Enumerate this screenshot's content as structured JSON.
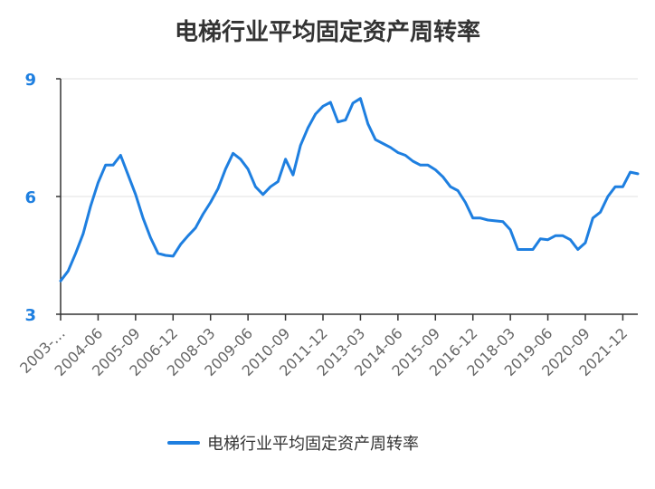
{
  "chart_data": {
    "type": "line",
    "title": "电梯行业平均固定资产周转率",
    "xlabel": "",
    "ylabel": "",
    "ylim": [
      3,
      9
    ],
    "y_ticks": [
      3,
      6,
      9
    ],
    "y_tick_color": "#1e7fe0",
    "grid": true,
    "grid_axis": "y",
    "legend_position": "bottom-center",
    "x_tick_labels": [
      "2003-…",
      "2004-06",
      "2005-09",
      "2006-12",
      "2008-03",
      "2009-06",
      "2010-09",
      "2011-12",
      "2013-03",
      "2014-06",
      "2015-09",
      "2016-12",
      "2018-03",
      "2019-06",
      "2020-09",
      "2021-12"
    ],
    "x_tick_index_step": 5,
    "series": [
      {
        "name": "电梯行业平均固定资产周转率",
        "color": "#1e7fe0",
        "values": [
          3.85,
          4.1,
          4.55,
          5.05,
          5.75,
          6.35,
          6.8,
          6.8,
          7.05,
          6.55,
          6.05,
          5.45,
          4.95,
          4.55,
          4.5,
          4.48,
          4.78,
          5.0,
          5.2,
          5.55,
          5.85,
          6.2,
          6.7,
          7.1,
          6.95,
          6.7,
          6.25,
          6.05,
          6.25,
          6.38,
          6.95,
          6.55,
          7.3,
          7.75,
          8.1,
          8.3,
          8.4,
          7.9,
          7.95,
          8.38,
          8.5,
          7.85,
          7.45,
          7.35,
          7.25,
          7.12,
          7.05,
          6.9,
          6.8,
          6.8,
          6.68,
          6.5,
          6.25,
          6.15,
          5.85,
          5.45,
          5.45,
          5.4,
          5.38,
          5.36,
          5.15,
          4.65,
          4.65,
          4.65,
          4.92,
          4.9,
          5.0,
          5.0,
          4.9,
          4.65,
          4.82,
          5.45,
          5.6,
          6.0,
          6.25,
          6.25,
          6.62,
          6.58
        ]
      }
    ]
  }
}
